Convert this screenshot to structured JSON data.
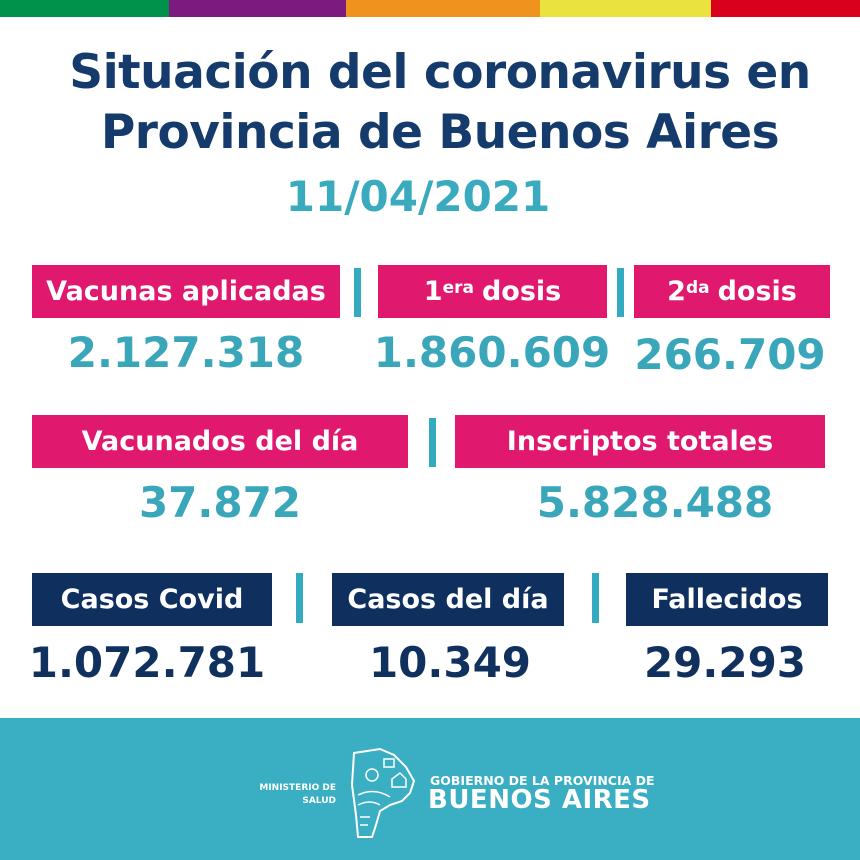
{
  "stripe_colors": [
    "#00924a",
    "#7d1a80",
    "#f0921e",
    "#e9e23f",
    "#d9001b"
  ],
  "header": {
    "title_line1": "Situación del coronavirus en",
    "title_line2": "Provincia de Buenos Aires",
    "date": "11/04/2021"
  },
  "vaccines": {
    "applied": {
      "label": "Vacunas aplicadas",
      "value": "2.127.318"
    },
    "first_dose": {
      "label_num": "1",
      "label_sup": "era",
      "label_text": "dosis",
      "value": "1.860.609"
    },
    "second_dose": {
      "label_num": "2",
      "label_sup": "da",
      "label_text": "dosis",
      "value": "266.709"
    },
    "daily": {
      "label": "Vacunados del día",
      "value": "37.872"
    },
    "registered": {
      "label": "Inscriptos totales",
      "value": "5.828.488"
    }
  },
  "cases": {
    "total": {
      "label": "Casos Covid",
      "value": "1.072.781"
    },
    "daily": {
      "label": "Casos del día",
      "value": "10.349"
    },
    "deaths": {
      "label": "Fallecidos",
      "value": "29.293"
    }
  },
  "footer": {
    "ministry": "MINISTERIO DE SALUD",
    "gov_line1": "GOBIERNO DE LA PROVINCIA DE",
    "gov_line2": "BUENOS AIRES"
  },
  "colors": {
    "pink": "#e0196f",
    "navy": "#0f2f5e",
    "teal": "#3aaec3"
  }
}
